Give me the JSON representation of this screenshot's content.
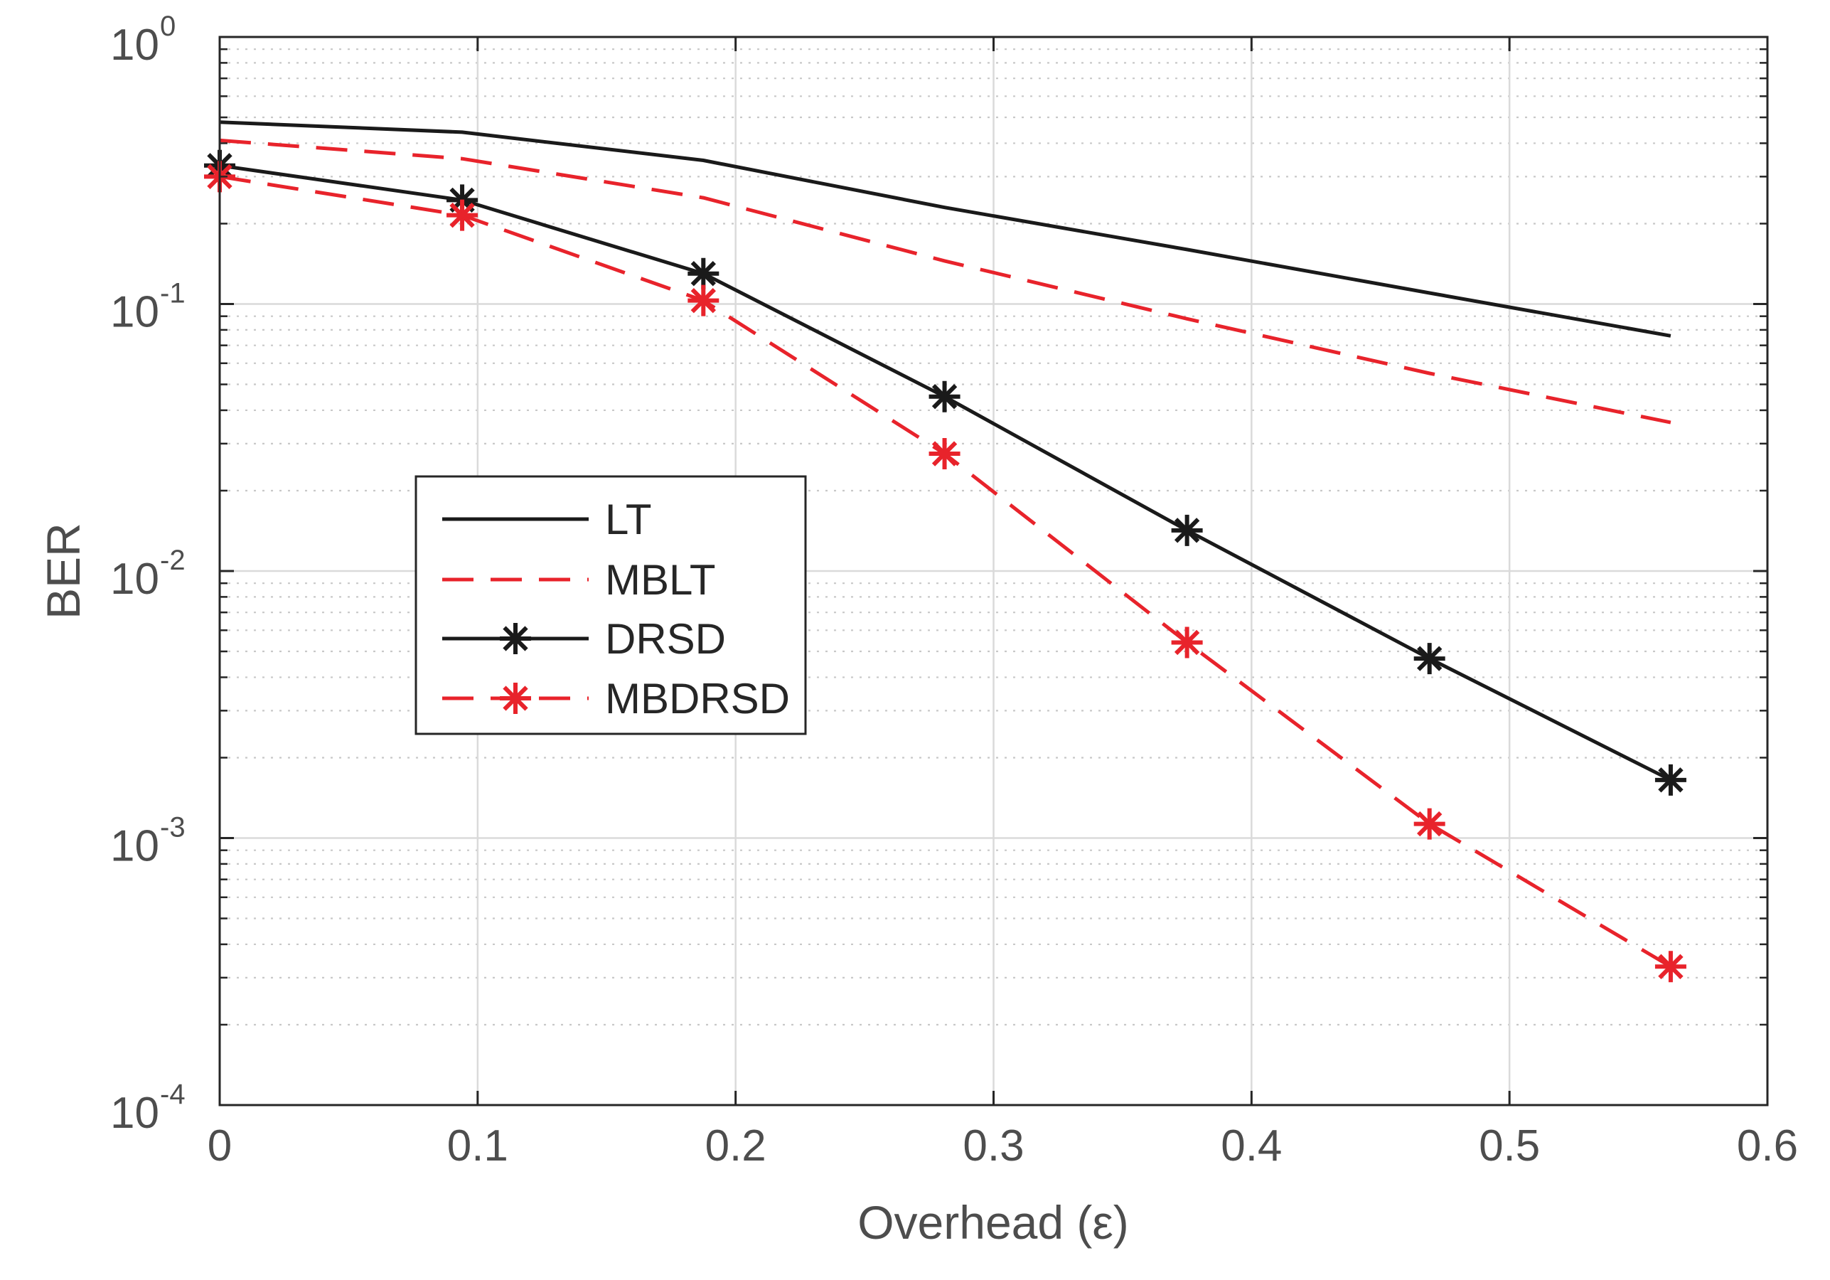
{
  "chart_data": {
    "type": "line",
    "title": "",
    "xlabel": "Overhead (ε)",
    "ylabel": "BER",
    "xscale": "linear",
    "yscale": "log",
    "xlim": [
      0,
      0.6
    ],
    "ylim": [
      0.0001,
      1
    ],
    "grid": true,
    "minor_grid": true,
    "xticks": [
      0,
      0.1,
      0.2,
      0.3,
      0.4,
      0.5,
      0.6
    ],
    "xtick_labels": [
      "0",
      "0.1",
      "0.2",
      "0.3",
      "0.4",
      "0.5",
      "0.6"
    ],
    "yticks": [
      {
        "value": 0.0001,
        "base": "10",
        "exp": "-4"
      },
      {
        "value": 0.001,
        "base": "10",
        "exp": "-3"
      },
      {
        "value": 0.01,
        "base": "10",
        "exp": "-2"
      },
      {
        "value": 0.1,
        "base": "10",
        "exp": "-1"
      },
      {
        "value": 1,
        "base": "10",
        "exp": "0"
      }
    ],
    "legend_position": "center-left",
    "series": [
      {
        "name": "LT",
        "color": "#1a1a1a",
        "line_style": "solid",
        "marker": "none",
        "x": [
          0,
          0.094,
          0.1875,
          0.281,
          0.375,
          0.469,
          0.5625
        ],
        "values": [
          0.48,
          0.44,
          0.345,
          0.23,
          0.16,
          0.11,
          0.076
        ]
      },
      {
        "name": "MBLT",
        "color": "#e8232b",
        "line_style": "dashed",
        "marker": "none",
        "x": [
          0,
          0.094,
          0.1875,
          0.281,
          0.375,
          0.469,
          0.5625
        ],
        "values": [
          0.41,
          0.35,
          0.25,
          0.145,
          0.088,
          0.055,
          0.036
        ]
      },
      {
        "name": "DRSD",
        "color": "#1a1a1a",
        "line_style": "solid",
        "marker": "asterisk",
        "x": [
          0,
          0.094,
          0.1875,
          0.281,
          0.375,
          0.469,
          0.5625
        ],
        "values": [
          0.33,
          0.245,
          0.13,
          0.045,
          0.0142,
          0.0047,
          0.00165
        ]
      },
      {
        "name": "MBDRSD",
        "color": "#e8232b",
        "line_style": "dashed",
        "marker": "asterisk",
        "x": [
          0,
          0.094,
          0.1875,
          0.281,
          0.375,
          0.469,
          0.5625
        ],
        "values": [
          0.3,
          0.215,
          0.103,
          0.0275,
          0.0054,
          0.00113,
          0.00033
        ]
      }
    ]
  }
}
